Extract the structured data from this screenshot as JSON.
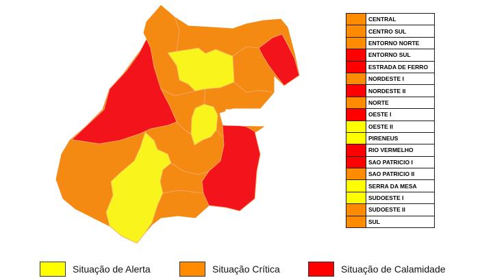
{
  "colors": {
    "alerta": "#ffff00",
    "critica": "#ff8c00",
    "calamidade": "#ff0000",
    "map_alerta": "#f8f41c",
    "map_critica": "#f48a12",
    "map_calamidade": "#f2141a"
  },
  "regions": [
    {
      "name": "CENTRAL",
      "status": "critica"
    },
    {
      "name": "CENTRO SUL",
      "status": "critica"
    },
    {
      "name": "ENTORNO NORTE",
      "status": "critica"
    },
    {
      "name": "ENTORNO SUL",
      "status": "calamidade"
    },
    {
      "name": "ESTRADA DE FERRO",
      "status": "calamidade"
    },
    {
      "name": "NORDESTE I",
      "status": "critica"
    },
    {
      "name": "NORDESTE II",
      "status": "calamidade"
    },
    {
      "name": "NORTE",
      "status": "critica"
    },
    {
      "name": "OESTE I",
      "status": "calamidade"
    },
    {
      "name": "OESTE II",
      "status": "alerta"
    },
    {
      "name": "PIRENEUS",
      "status": "alerta"
    },
    {
      "name": "RIO VERMELHO",
      "status": "calamidade"
    },
    {
      "name": "SAO PATRICIO I",
      "status": "calamidade"
    },
    {
      "name": "SAO PATRICIO II",
      "status": "critica"
    },
    {
      "name": "SERRA DA MESA",
      "status": "alerta"
    },
    {
      "name": "SUDOESTE I",
      "status": "alerta"
    },
    {
      "name": "SUDOESTE II",
      "status": "critica"
    },
    {
      "name": "SUL",
      "status": "critica"
    }
  ],
  "legend": [
    {
      "label": "Situação de Alerta",
      "status": "alerta"
    },
    {
      "label": "Situação Crítica",
      "status": "critica"
    },
    {
      "label": "Situação de Calamidade",
      "status": "calamidade"
    }
  ]
}
